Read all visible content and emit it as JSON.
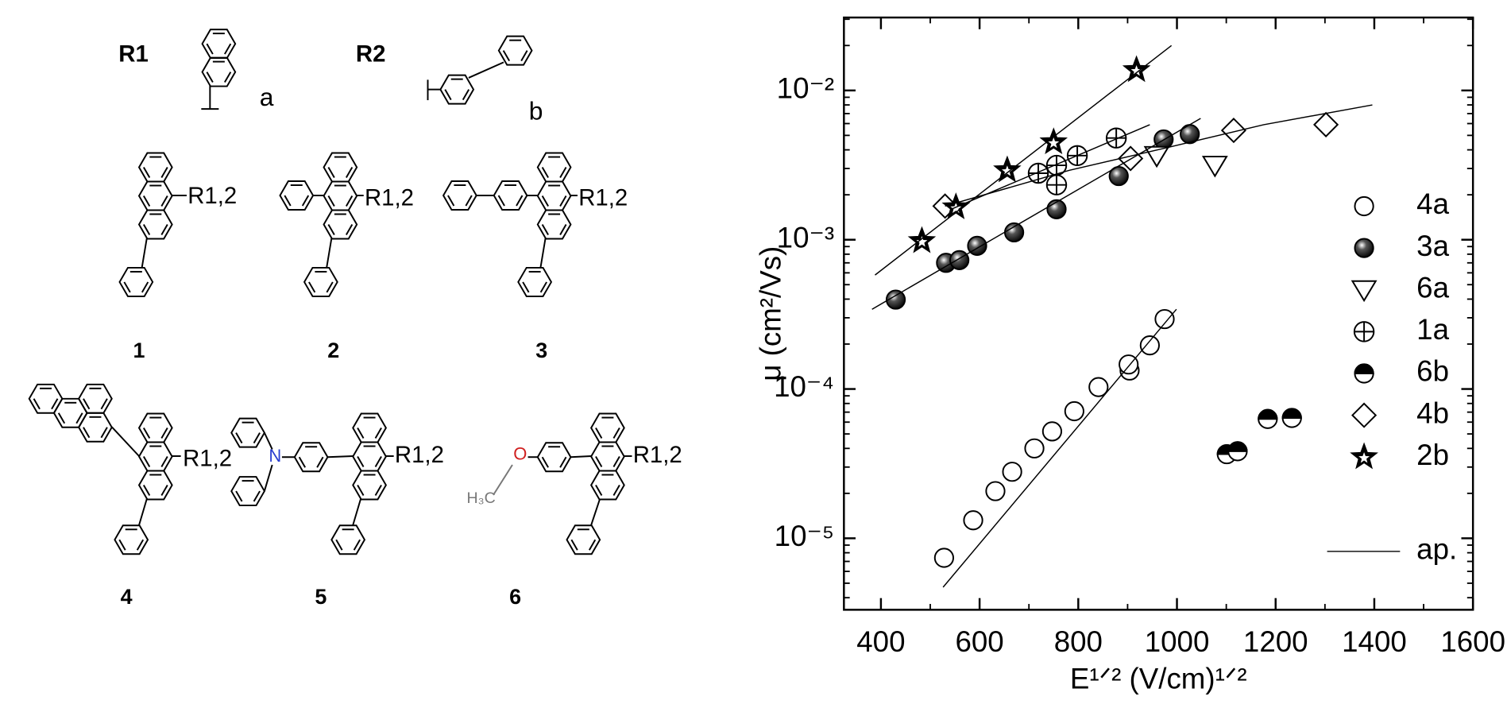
{
  "structures": {
    "groups": [
      {
        "label": "R1",
        "tag": "a"
      },
      {
        "label": "R2",
        "tag": "b"
      }
    ],
    "compounds": [
      {
        "number": "1",
        "substituent": "R1,2"
      },
      {
        "number": "2",
        "substituent": "R1,2"
      },
      {
        "number": "3",
        "substituent": "R1,2"
      },
      {
        "number": "4",
        "substituent": "R1,2"
      },
      {
        "number": "5",
        "substituent": "R1,2",
        "atoms": [
          "N"
        ]
      },
      {
        "number": "6",
        "substituent": "R1,2",
        "atoms": [
          "O",
          "H₃C"
        ]
      }
    ]
  },
  "chart_data": {
    "type": "scatter",
    "x_label": "E¹ᐟ² (V/cm)¹ᐟ²",
    "y_label": "μ  (cm²/Vs)",
    "xlim": [
      325,
      1600
    ],
    "xticks": [
      400,
      600,
      800,
      1000,
      1200,
      1400,
      1600
    ],
    "ylim": [
      3.32e-06,
      0.0308
    ],
    "log_y": true,
    "yticks": [
      {
        "value": 1e-05,
        "label": "10⁻⁵"
      },
      {
        "value": 0.0001,
        "label": "10⁻⁴"
      },
      {
        "value": 0.001,
        "label": "10⁻³"
      },
      {
        "value": 0.01,
        "label": "10⁻²"
      }
    ],
    "legend": "right",
    "series": [
      {
        "name": "4a",
        "marker": "open-circle",
        "color": "#000000",
        "x": [
          528,
          587,
          632,
          666,
          711,
          747,
          792,
          841,
          904,
          902,
          945,
          975
        ],
        "values": [
          7.4e-06,
          1.32e-05,
          2.07e-05,
          2.79e-05,
          4e-05,
          5.2e-05,
          7.1e-05,
          0.000103,
          0.000133,
          0.000146,
          0.000196,
          0.000294
        ]
      },
      {
        "name": "3a",
        "marker": "sphere",
        "color": "#000000",
        "x": [
          430,
          532,
          559,
          595,
          670,
          756,
          882,
          973,
          1026
        ],
        "values": [
          0.000397,
          0.0007,
          0.00073,
          0.00091,
          0.00112,
          0.0016,
          0.00267,
          0.0047,
          0.0051
        ]
      },
      {
        "name": "6a",
        "marker": "triangle-down",
        "color": "#000000",
        "x": [
          959,
          1077
        ],
        "values": [
          0.00366,
          0.00315
        ]
      },
      {
        "name": "1a",
        "marker": "crossed-circle",
        "color": "#000000",
        "x": [
          719,
          756,
          756,
          798,
          877
        ],
        "values": [
          0.00279,
          0.00315,
          0.00233,
          0.00366,
          0.0048
        ]
      },
      {
        "name": "6b",
        "marker": "half-circle",
        "color": "#000000",
        "x": [
          1101,
          1123,
          1184,
          1233
        ],
        "values": [
          3.66e-05,
          3.83e-05,
          6.3e-05,
          6.4e-05
        ]
      },
      {
        "name": "4b",
        "marker": "diamond",
        "color": "#000000",
        "x": [
          530,
          906,
          1115,
          1302
        ],
        "values": [
          0.00168,
          0.0035,
          0.0054,
          0.0059
        ]
      },
      {
        "name": "2b",
        "marker": "star",
        "color": "#000000",
        "x": [
          483,
          552,
          656,
          750,
          918
        ],
        "values": [
          0.00098,
          0.00165,
          0.00292,
          0.0045,
          0.0137
        ]
      },
      {
        "name": "ap.",
        "marker": "line",
        "color": "#000000",
        "segments": [
          {
            "x": [
              526,
              999
            ],
            "values": [
              4.7e-06,
              0.000342
            ]
          },
          {
            "x": [
              382,
              1048
            ],
            "values": [
              0.000342,
              0.0065
            ]
          },
          {
            "x": [
              388,
              989
            ],
            "values": [
              0.00058,
              0.02
            ]
          },
          {
            "x": [
              542,
              945
            ],
            "values": [
              0.0016,
              0.0059
            ]
          },
          {
            "x": [
              530,
              782,
              979,
              1176,
              1396
            ],
            "values": [
              0.00168,
              0.00292,
              0.00413,
              0.0059,
              0.008
            ]
          }
        ]
      }
    ]
  }
}
